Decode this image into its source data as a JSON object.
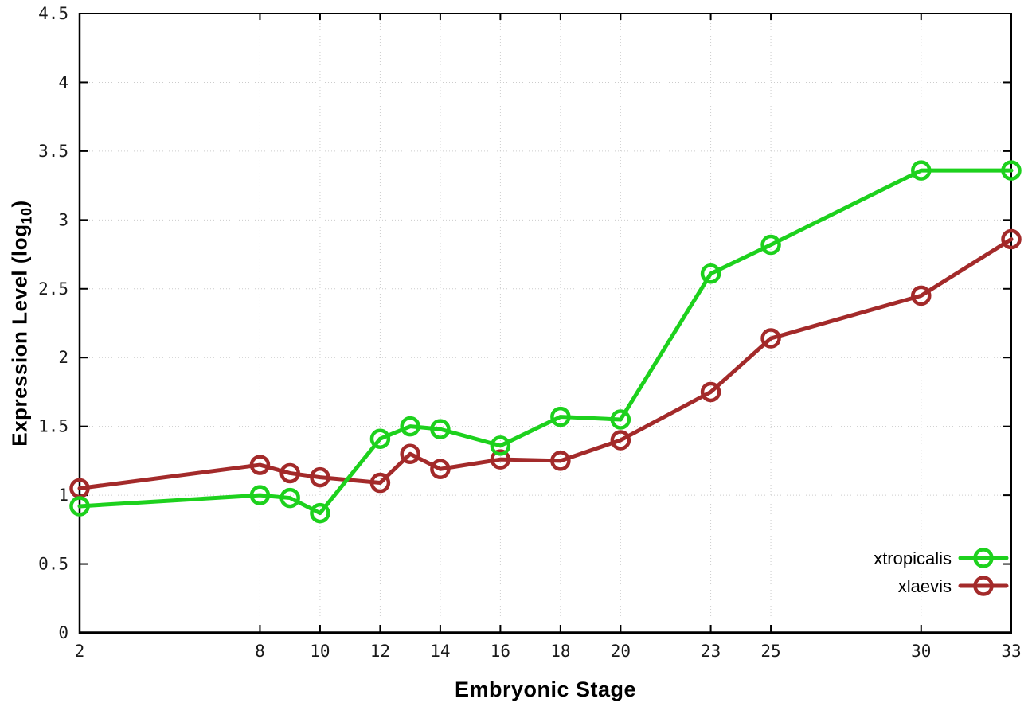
{
  "chart_data": {
    "type": "line",
    "title": "",
    "xlabel": "Embryonic Stage",
    "ylabel": "Expression Level (log10)",
    "ylabel_parts": {
      "pre": "Expression Level (log",
      "sub": "10",
      "post": ")"
    },
    "xlim": [
      2,
      33
    ],
    "ylim": [
      0,
      4.5
    ],
    "x_ticks": [
      2,
      8,
      10,
      12,
      14,
      16,
      18,
      20,
      23,
      25,
      30,
      33
    ],
    "x_tick_labels": [
      "2",
      "8",
      "10",
      "12",
      "14",
      "16",
      "18",
      "20",
      "23",
      "25",
      "30",
      "33"
    ],
    "y_ticks": [
      0,
      0.5,
      1,
      1.5,
      2,
      2.5,
      3,
      3.5,
      4,
      4.5
    ],
    "y_tick_labels": [
      "0",
      "0.5",
      "1",
      "1.5",
      "2",
      "2.5",
      "3",
      "3.5",
      "4",
      "4.5"
    ],
    "grid": true,
    "legend_position": "inside-bottom-right",
    "marker": "open-circle",
    "x": [
      2,
      8,
      9,
      10,
      12,
      13,
      14,
      16,
      18,
      20,
      23,
      25,
      30,
      33
    ],
    "series": [
      {
        "name": "xtropicalis",
        "color": "#1dd11d",
        "values": [
          0.92,
          1.0,
          0.98,
          0.87,
          1.41,
          1.5,
          1.48,
          1.36,
          1.57,
          1.55,
          2.61,
          2.82,
          3.36,
          3.36
        ]
      },
      {
        "name": "xlaevis",
        "color": "#a32a2a",
        "values": [
          1.05,
          1.22,
          1.16,
          1.13,
          1.09,
          1.3,
          1.19,
          1.26,
          1.25,
          1.4,
          1.75,
          2.14,
          2.45,
          2.86
        ]
      }
    ],
    "axis_color": "#000000",
    "grid_color": "#cccccc"
  }
}
